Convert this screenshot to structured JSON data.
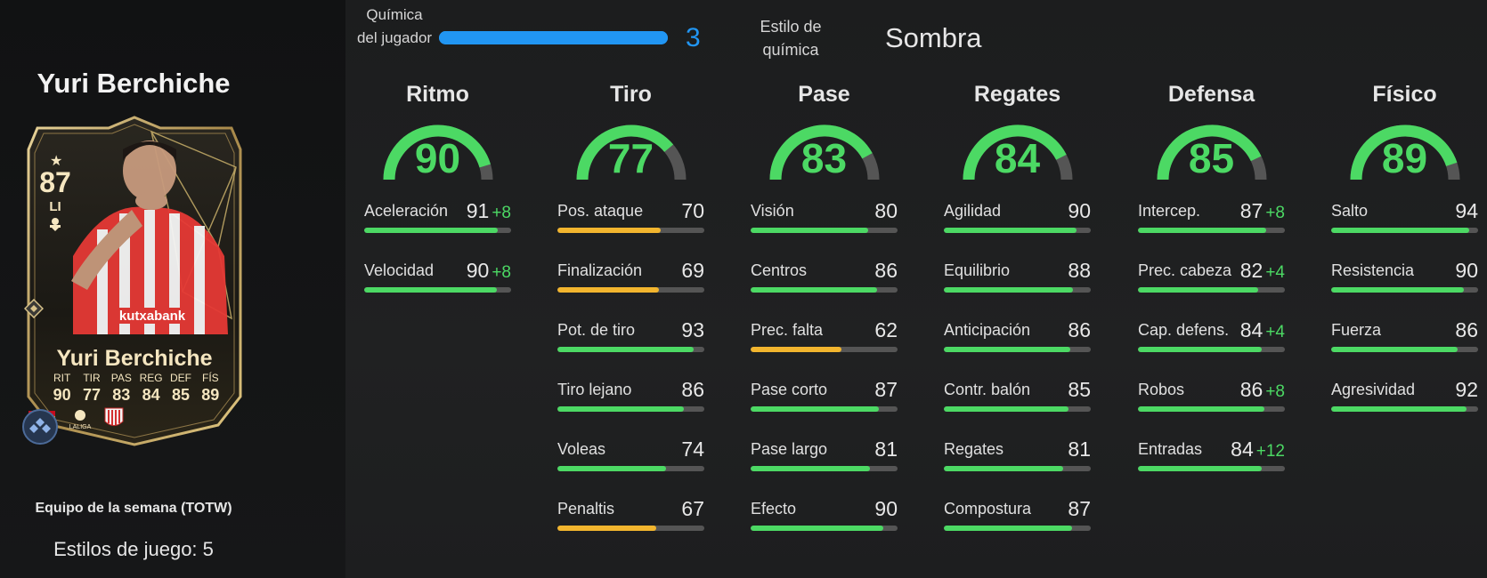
{
  "player": {
    "name": "Yuri Berchiche",
    "team_label": "Equipo de la semana (TOTW)",
    "playstyles_label": "Estilos de juego: 5"
  },
  "card": {
    "rating": "87",
    "position": "LI",
    "name": "Yuri Berchiche",
    "stat_labels": [
      "RIT",
      "TIR",
      "PAS",
      "REG",
      "DEF",
      "FÍS"
    ],
    "stat_values": [
      "90",
      "77",
      "83",
      "84",
      "85",
      "89"
    ],
    "sponsor": "Kutxabank",
    "league": "LALIGA",
    "icons": [
      "star-icon",
      "chemistry-style-icon",
      "playstyle-icon",
      "spain-flag-icon",
      "laliga-logo-icon",
      "athletic-club-badge-icon"
    ]
  },
  "chemistry": {
    "label": "Química del jugador",
    "value": "3",
    "max": 3,
    "style_label": "Estilo de química",
    "style_value": "Sombra"
  },
  "colors": {
    "green": "#4cd964",
    "yellow": "#f2b52e",
    "blue": "#2196f3",
    "track": "#555555"
  },
  "columns": [
    {
      "title": "Ritmo",
      "value": "90",
      "stats": [
        {
          "name": "Aceleración",
          "value": "91",
          "boost": "+8",
          "color": "green"
        },
        {
          "name": "Velocidad",
          "value": "90",
          "boost": "+8",
          "color": "green"
        }
      ]
    },
    {
      "title": "Tiro",
      "value": "77",
      "stats": [
        {
          "name": "Pos. ataque",
          "value": "70",
          "boost": "",
          "color": "yellow"
        },
        {
          "name": "Finalización",
          "value": "69",
          "boost": "",
          "color": "yellow"
        },
        {
          "name": "Pot. de tiro",
          "value": "93",
          "boost": "",
          "color": "green"
        },
        {
          "name": "Tiro lejano",
          "value": "86",
          "boost": "",
          "color": "green"
        },
        {
          "name": "Voleas",
          "value": "74",
          "boost": "",
          "color": "green"
        },
        {
          "name": "Penaltis",
          "value": "67",
          "boost": "",
          "color": "yellow"
        }
      ]
    },
    {
      "title": "Pase",
      "value": "83",
      "stats": [
        {
          "name": "Visión",
          "value": "80",
          "boost": "",
          "color": "green"
        },
        {
          "name": "Centros",
          "value": "86",
          "boost": "",
          "color": "green"
        },
        {
          "name": "Prec. falta",
          "value": "62",
          "boost": "",
          "color": "yellow"
        },
        {
          "name": "Pase corto",
          "value": "87",
          "boost": "",
          "color": "green"
        },
        {
          "name": "Pase largo",
          "value": "81",
          "boost": "",
          "color": "green"
        },
        {
          "name": "Efecto",
          "value": "90",
          "boost": "",
          "color": "green"
        }
      ]
    },
    {
      "title": "Regates",
      "value": "84",
      "stats": [
        {
          "name": "Agilidad",
          "value": "90",
          "boost": "",
          "color": "green"
        },
        {
          "name": "Equilibrio",
          "value": "88",
          "boost": "",
          "color": "green"
        },
        {
          "name": "Anticipación",
          "value": "86",
          "boost": "",
          "color": "green"
        },
        {
          "name": "Contr. balón",
          "value": "85",
          "boost": "",
          "color": "green"
        },
        {
          "name": "Regates",
          "value": "81",
          "boost": "",
          "color": "green"
        },
        {
          "name": "Compostura",
          "value": "87",
          "boost": "",
          "color": "green"
        }
      ]
    },
    {
      "title": "Defensa",
      "value": "85",
      "stats": [
        {
          "name": "Intercep.",
          "value": "87",
          "boost": "+8",
          "color": "green"
        },
        {
          "name": "Prec. cabeza",
          "value": "82",
          "boost": "+4",
          "color": "green"
        },
        {
          "name": "Cap. defens.",
          "value": "84",
          "boost": "+4",
          "color": "green"
        },
        {
          "name": "Robos",
          "value": "86",
          "boost": "+8",
          "color": "green"
        },
        {
          "name": "Entradas",
          "value": "84",
          "boost": "+12",
          "color": "green"
        }
      ]
    },
    {
      "title": "Físico",
      "value": "89",
      "stats": [
        {
          "name": "Salto",
          "value": "94",
          "boost": "",
          "color": "green"
        },
        {
          "name": "Resistencia",
          "value": "90",
          "boost": "",
          "color": "green"
        },
        {
          "name": "Fuerza",
          "value": "86",
          "boost": "",
          "color": "green"
        },
        {
          "name": "Agresividad",
          "value": "92",
          "boost": "",
          "color": "green"
        }
      ]
    }
  ]
}
